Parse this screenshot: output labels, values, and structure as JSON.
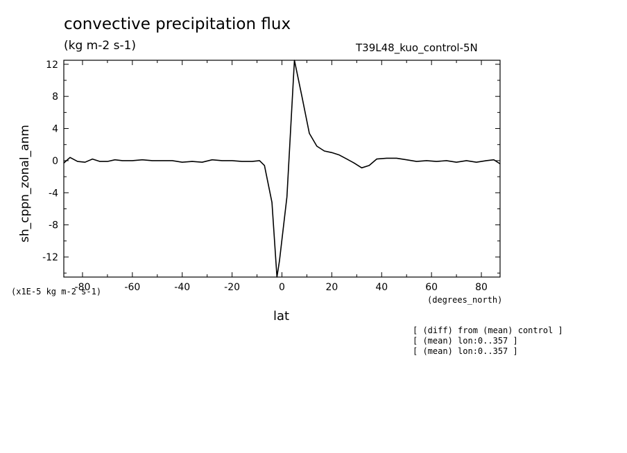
{
  "chart_data": {
    "type": "line",
    "title": "convective precipitation flux",
    "units": "(kg m-2 s-1)",
    "experiment": "T39L48_kuo_control-5N",
    "ylabel": "sh_cppn_zonal_anm",
    "xlabel": "lat",
    "x_units": "(degrees_north)",
    "y_scale_note": "(x1E-5 kg m-2 s-1)",
    "xlim": [
      -87.5,
      87.5
    ],
    "ylim": [
      -14.5,
      12.5
    ],
    "x_ticks": [
      -80,
      -60,
      -40,
      -20,
      0,
      20,
      40,
      60,
      80
    ],
    "x_tick_labels": [
      "-80",
      "-60",
      "-40",
      "-20",
      "0",
      "20",
      "40",
      "60",
      "80"
    ],
    "y_ticks": [
      -12,
      -8,
      -4,
      0,
      4,
      8,
      12
    ],
    "y_tick_labels": [
      "-12",
      "-8",
      "-4",
      "0",
      "4",
      "8",
      "12"
    ],
    "grid": false,
    "series": [
      {
        "x": [
          -87.5,
          -85,
          -82,
          -79,
          -76,
          -73,
          -70,
          -67,
          -64,
          -60,
          -56,
          -52,
          -48,
          -44,
          -40,
          -36,
          -32,
          -28,
          -24,
          -20,
          -16,
          -12,
          -9,
          -7,
          -4,
          -2,
          -1,
          2,
          5,
          8,
          11,
          14,
          17,
          20,
          23,
          26,
          29,
          32,
          35,
          38,
          42,
          46,
          50,
          54,
          58,
          62,
          66,
          70,
          74,
          78,
          82,
          85,
          87.5
        ],
        "y": [
          -0.3,
          0.4,
          -0.1,
          -0.2,
          0.2,
          -0.1,
          -0.1,
          0.1,
          0.0,
          0.0,
          0.1,
          0.0,
          0.0,
          0.0,
          -0.2,
          -0.1,
          -0.2,
          0.1,
          0.0,
          0.0,
          -0.1,
          -0.1,
          0.0,
          -0.6,
          -5.2,
          -14.5,
          -12.5,
          -4.5,
          12.5,
          8.0,
          3.4,
          1.8,
          1.2,
          1.0,
          0.7,
          0.2,
          -0.3,
          -0.9,
          -0.6,
          0.2,
          0.3,
          0.3,
          0.1,
          -0.1,
          0.0,
          -0.1,
          0.0,
          -0.2,
          0.0,
          -0.2,
          0.0,
          0.1,
          -0.4
        ]
      }
    ]
  },
  "annotations": [
    "[ (diff) from (mean) control ]",
    "[ (mean) lon:0..357 ]",
    "[ (mean) lon:0..357 ]"
  ]
}
